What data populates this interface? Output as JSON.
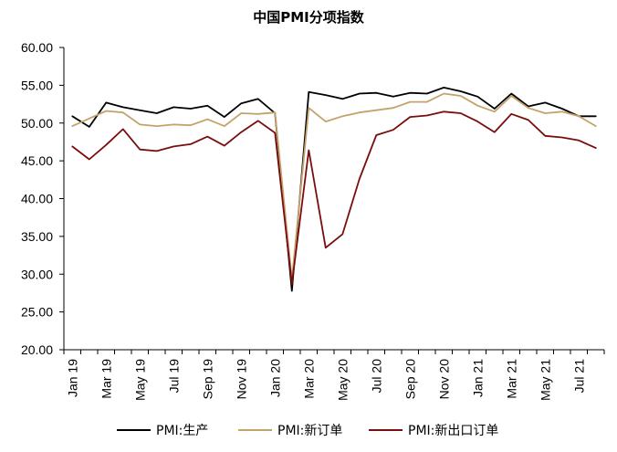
{
  "chart_data": {
    "type": "line",
    "title": "中国PMI分项指数",
    "xlabel": "",
    "ylabel": "",
    "ylim": [
      20,
      60
    ],
    "yticks": [
      "20.00",
      "25.00",
      "30.00",
      "35.00",
      "40.00",
      "45.00",
      "50.00",
      "55.00",
      "60.00"
    ],
    "grid": false,
    "legend_position": "bottom",
    "x": [
      "Jan 19",
      "Feb 19",
      "Mar 19",
      "Apr 19",
      "May 19",
      "Jun 19",
      "Jul 19",
      "Aug 19",
      "Sep 19",
      "Oct 19",
      "Nov 19",
      "Dec 19",
      "Jan 20",
      "Feb 20",
      "Mar 20",
      "Apr 20",
      "May 20",
      "Jun 20",
      "Jul 20",
      "Aug 20",
      "Sep 20",
      "Oct 20",
      "Nov 20",
      "Dec 20",
      "Jan 21",
      "Feb 21",
      "Mar 21",
      "Apr 21",
      "May 21",
      "Jun 21",
      "Jul 21",
      "Aug 21"
    ],
    "x_tick_labels": [
      "Jan 19",
      "Mar 19",
      "May 19",
      "Jul 19",
      "Sep 19",
      "Nov 19",
      "Jan 20",
      "Mar 20",
      "May 20",
      "Jul 20",
      "Sep 20",
      "Nov 20",
      "Jan 21",
      "Mar 21",
      "May 21",
      "Jul 21"
    ],
    "series": [
      {
        "name": "PMI:生产",
        "color": "#000000",
        "values": [
          50.9,
          49.5,
          52.7,
          52.1,
          51.7,
          51.3,
          52.1,
          51.9,
          52.3,
          50.8,
          52.6,
          53.2,
          51.3,
          27.8,
          54.1,
          53.7,
          53.2,
          53.9,
          54.0,
          53.5,
          54.0,
          53.9,
          54.7,
          54.2,
          53.5,
          51.9,
          53.9,
          52.2,
          52.7,
          51.9,
          50.9,
          50.9
        ]
      },
      {
        "name": "PMI:新订单",
        "color": "#c4a36b",
        "values": [
          49.6,
          50.6,
          51.6,
          51.4,
          49.8,
          49.6,
          49.8,
          49.7,
          50.5,
          49.6,
          51.3,
          51.2,
          51.4,
          29.3,
          52.0,
          50.2,
          50.9,
          51.4,
          51.7,
          52.0,
          52.8,
          52.8,
          53.9,
          53.6,
          52.3,
          51.5,
          53.6,
          52.0,
          51.3,
          51.5,
          50.9,
          49.6
        ]
      },
      {
        "name": "PMI:新出口订单",
        "color": "#7a0d0d",
        "values": [
          46.9,
          45.2,
          47.1,
          49.2,
          46.5,
          46.3,
          46.9,
          47.2,
          48.2,
          47.0,
          48.8,
          50.3,
          48.7,
          28.7,
          46.4,
          33.5,
          35.3,
          42.6,
          48.4,
          49.1,
          50.8,
          51.0,
          51.5,
          51.3,
          50.2,
          48.8,
          51.2,
          50.4,
          48.3,
          48.1,
          47.7,
          46.7
        ]
      }
    ]
  }
}
